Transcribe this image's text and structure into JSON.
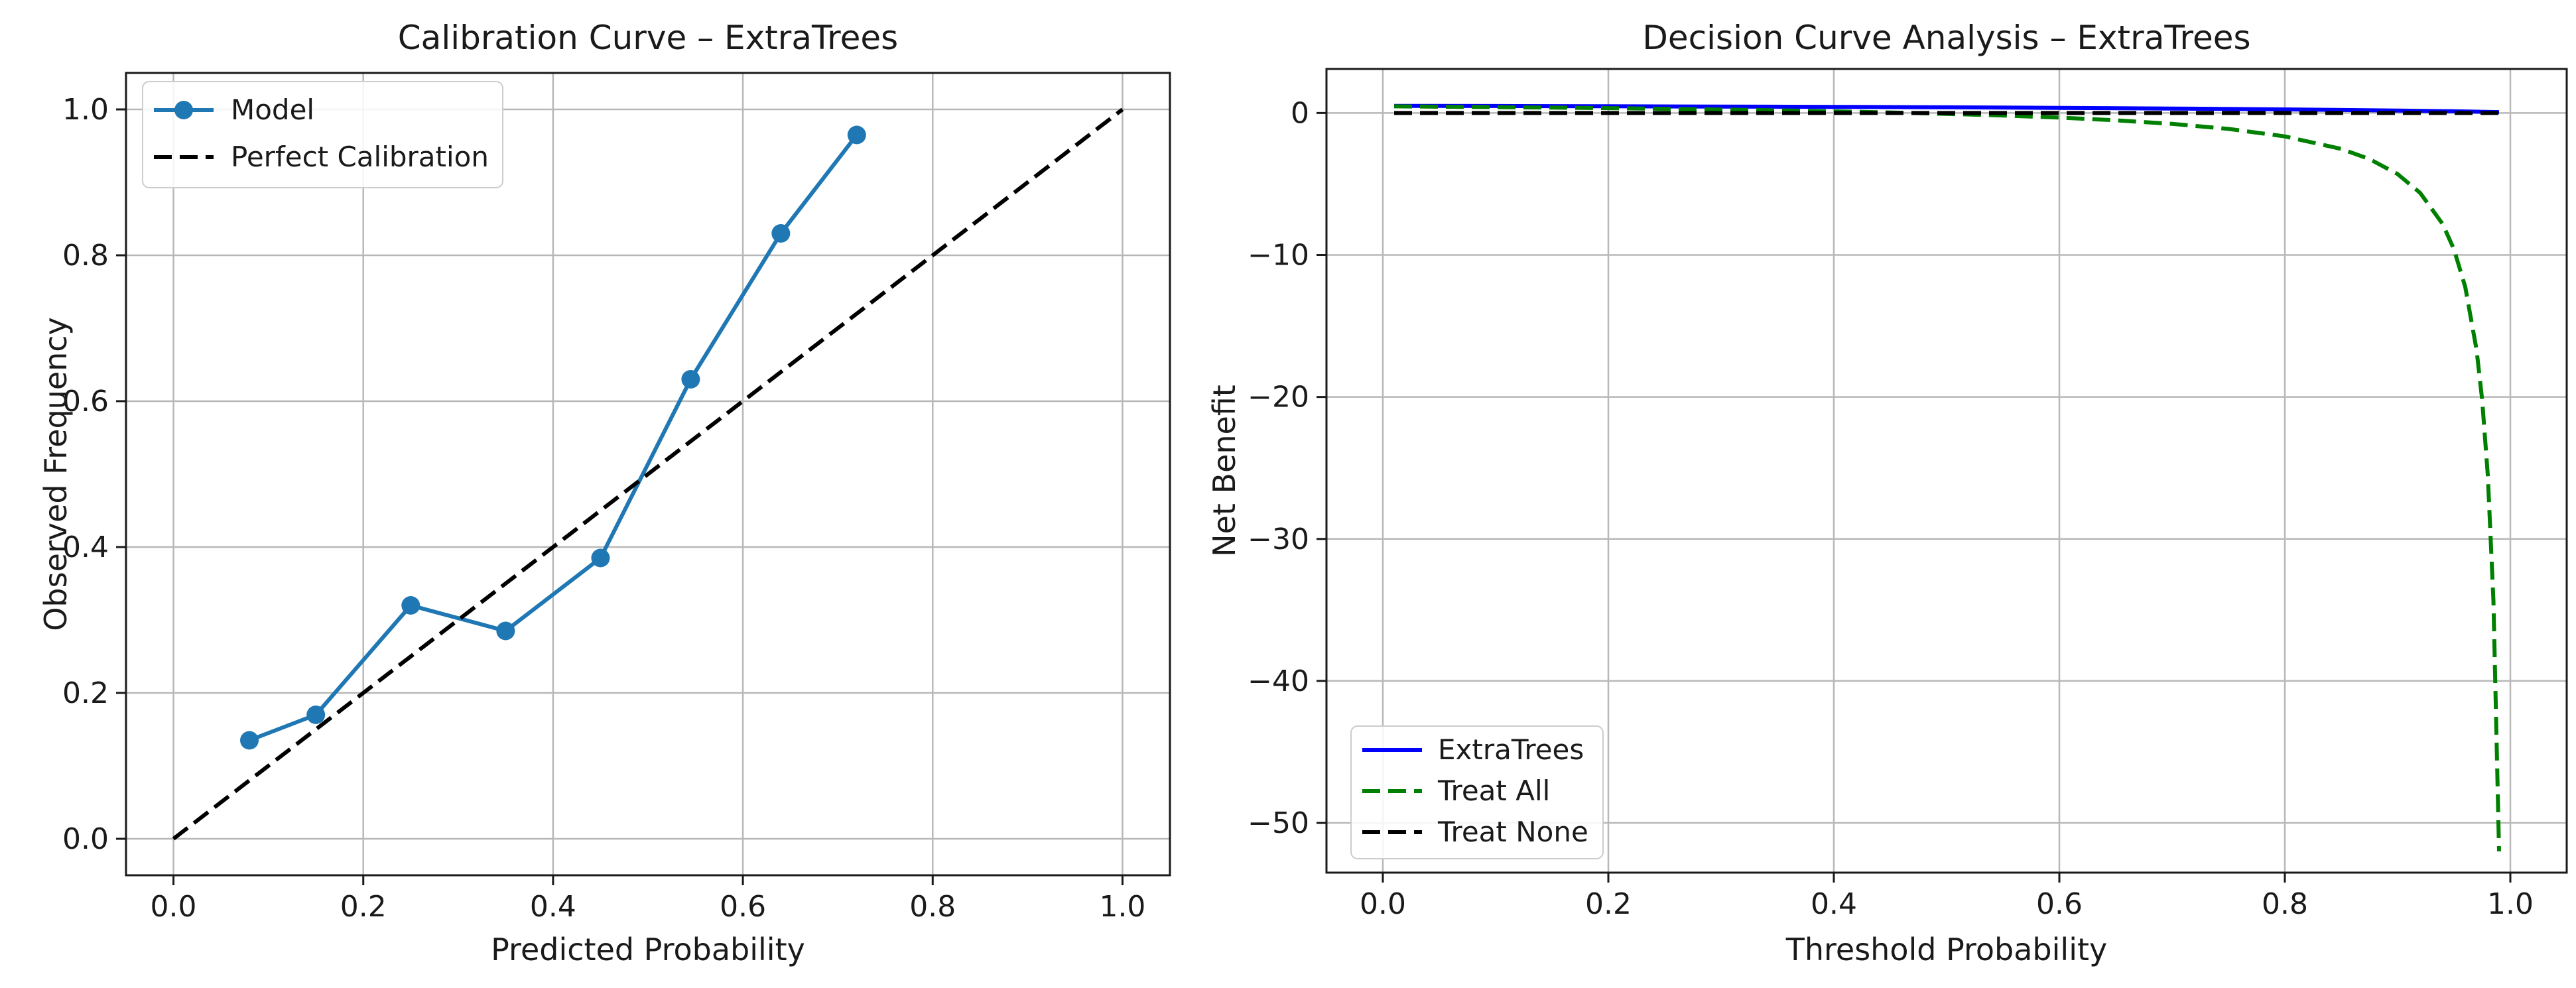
{
  "figure": {
    "background": "#ffffff",
    "grid_color": "#b8b8b8",
    "spine_color": "#1a1a1a",
    "text_color": "#1a1a1a"
  },
  "chart_data": [
    {
      "type": "line",
      "title": "Calibration Curve – ExtraTrees",
      "xlabel": "Predicted Probability",
      "ylabel": "Observed Frequency",
      "xlim": [
        -0.05,
        1.05
      ],
      "ylim": [
        -0.05,
        1.05
      ],
      "xticks": {
        "values": [
          0.0,
          0.2,
          0.4,
          0.6,
          0.8,
          1.0
        ],
        "labels": [
          "0.0",
          "0.2",
          "0.4",
          "0.6",
          "0.8",
          "1.0"
        ]
      },
      "yticks": {
        "values": [
          0.0,
          0.2,
          0.4,
          0.6,
          0.8,
          1.0
        ],
        "labels": [
          "0.0",
          "0.2",
          "0.4",
          "0.6",
          "0.8",
          "1.0"
        ]
      },
      "grid": true,
      "legend_position": "upper-left",
      "series": [
        {
          "name": "Model",
          "color": "#1f77b4",
          "linestyle": "solid",
          "marker": "o",
          "x": [
            0.08,
            0.15,
            0.25,
            0.35,
            0.45,
            0.545,
            0.64,
            0.72
          ],
          "y": [
            0.135,
            0.17,
            0.32,
            0.285,
            0.385,
            0.63,
            0.83,
            0.965
          ]
        },
        {
          "name": "Perfect Calibration",
          "color": "#000000",
          "linestyle": "dashed",
          "marker": null,
          "x": [
            0.0,
            1.0
          ],
          "y": [
            0.0,
            1.0
          ]
        }
      ]
    },
    {
      "type": "line",
      "title": "Decision Curve Analysis – ExtraTrees",
      "xlabel": "Threshold Probability",
      "ylabel": "Net Benefit",
      "xlim": [
        -0.05,
        1.05
      ],
      "ylim": [
        -53.5,
        3.1
      ],
      "xticks": {
        "values": [
          0.0,
          0.2,
          0.4,
          0.6,
          0.8,
          1.0
        ],
        "labels": [
          "0.0",
          "0.2",
          "0.4",
          "0.6",
          "0.8",
          "1.0"
        ]
      },
      "yticks": {
        "values": [
          0,
          -10,
          -20,
          -30,
          -40,
          -50
        ],
        "labels": [
          "0",
          "−10",
          "−20",
          "−30",
          "−40",
          "−50"
        ]
      },
      "grid": true,
      "legend_position": "lower-left",
      "series": [
        {
          "name": "ExtraTrees",
          "color": "#0000ff",
          "linestyle": "solid",
          "marker": null,
          "x": [
            0.01,
            0.1,
            0.2,
            0.3,
            0.4,
            0.5,
            0.6,
            0.7,
            0.8,
            0.9,
            0.95,
            0.99
          ],
          "y": [
            0.5,
            0.49,
            0.47,
            0.45,
            0.43,
            0.4,
            0.36,
            0.31,
            0.25,
            0.17,
            0.12,
            0.06
          ]
        },
        {
          "name": "Treat All",
          "color": "#008000",
          "linestyle": "dashed",
          "marker": null,
          "x": [
            0.01,
            0.05,
            0.1,
            0.15,
            0.2,
            0.25,
            0.3,
            0.35,
            0.4,
            0.45,
            0.5,
            0.55,
            0.6,
            0.65,
            0.7,
            0.75,
            0.8,
            0.85,
            0.875,
            0.9,
            0.92,
            0.94,
            0.95,
            0.96,
            0.97,
            0.975,
            0.98,
            0.985,
            0.99
          ],
          "y": [
            0.465,
            0.442,
            0.411,
            0.376,
            0.338,
            0.293,
            0.243,
            0.185,
            0.117,
            0.036,
            -0.06,
            -0.178,
            -0.325,
            -0.514,
            -0.767,
            -1.12,
            -1.65,
            -2.533,
            -3.24,
            -4.3,
            -5.63,
            -7.83,
            -9.6,
            -12.25,
            -16.66,
            -20.2,
            -25.5,
            -34.33,
            -52.0
          ]
        },
        {
          "name": "Treat None",
          "color": "#000000",
          "linestyle": "dashed",
          "marker": null,
          "x": [
            0.01,
            0.99
          ],
          "y": [
            0.0,
            0.0
          ]
        }
      ]
    }
  ]
}
